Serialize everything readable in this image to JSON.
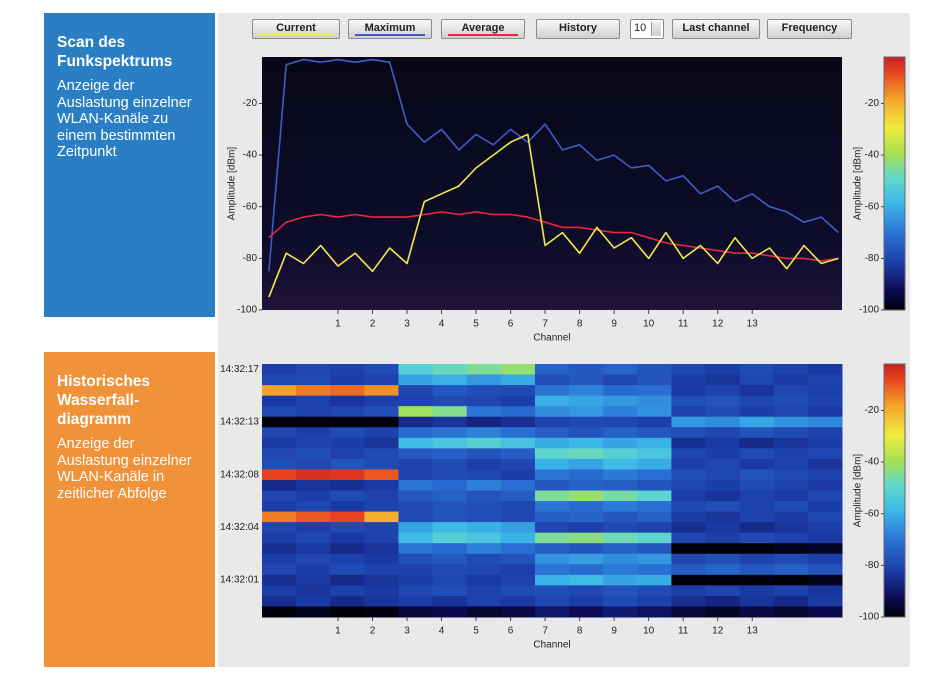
{
  "panels": [
    {
      "title": "Scan des Funkspektrums",
      "body": "Anzeige der Auslastung einzelner WLAN-Kanäle zu einem bestimmten Zeitpunkt"
    },
    {
      "title": "Historisches Wasserfall-diagramm",
      "body": "Anzeige der Auslastung einzelner WLAN-Kanäle in zeitlicher Abfolge"
    }
  ],
  "toolbar": {
    "buttons": [
      "History"
    ],
    "interval": 10,
    "buttons_right": [
      "Last channel",
      "Frequency"
    ]
  },
  "chart_data": [
    {
      "type": "line",
      "x_label": "Channel",
      "y_label": "Amplitude [dBm]",
      "x": [
        -1,
        -0.5,
        0,
        0.5,
        1,
        1.5,
        2,
        2.5,
        3,
        3.5,
        4,
        4.5,
        5,
        5.5,
        6,
        6.5,
        7,
        7.5,
        8,
        8.5,
        9,
        9.5,
        10,
        10.5,
        11,
        11.5,
        12,
        12.5,
        13,
        13.5,
        14,
        14.5,
        15,
        15.5
      ],
      "xlim": [
        -1.2,
        15.6
      ],
      "xticks": [
        1,
        2,
        3,
        4,
        5,
        6,
        7,
        8,
        9,
        10,
        11,
        12,
        13
      ],
      "ylim": [
        -100,
        -2
      ],
      "yticks": [
        -20,
        -40,
        -60,
        -80,
        -100
      ],
      "series": [
        {
          "name": "Current",
          "color": "#f2ea4a",
          "values": [
            -95,
            -78,
            -82,
            -75,
            -83,
            -78,
            -85,
            -76,
            -82,
            -58,
            -55,
            -52,
            -45,
            -40,
            -35,
            -32,
            -75,
            -70,
            -78,
            -68,
            -76,
            -72,
            -80,
            -70,
            -80,
            -75,
            -82,
            -72,
            -80,
            -76,
            -84,
            -75,
            -82,
            -80
          ]
        },
        {
          "name": "Maximum",
          "color": "#3e5cc8",
          "values": [
            -85,
            -5,
            -3,
            -4,
            -3,
            -4,
            -3,
            -4,
            -28,
            -35,
            -30,
            -38,
            -32,
            -36,
            -30,
            -35,
            -28,
            -38,
            -36,
            -42,
            -40,
            -45,
            -44,
            -50,
            -48,
            -55,
            -52,
            -58,
            -55,
            -60,
            -62,
            -66,
            -64,
            -70
          ]
        },
        {
          "name": "Average",
          "color": "#e8283c",
          "values": [
            -72,
            -66,
            -64,
            -63,
            -64,
            -63,
            -64,
            -64,
            -64,
            -63,
            -62,
            -63,
            -62,
            -63,
            -63,
            -64,
            -66,
            -68,
            -68,
            -69,
            -70,
            -70,
            -72,
            -74,
            -75,
            -76,
            -77,
            -78,
            -78,
            -79,
            -80,
            -80,
            -81,
            -80
          ]
        }
      ],
      "colorbar": {
        "label": "Amplitude [dBm]",
        "lim": [
          -100,
          -2
        ],
        "ticks": [
          -20,
          -40,
          -60,
          -80,
          -100
        ]
      }
    },
    {
      "type": "heatmap",
      "x_label": "Channel",
      "xlim": [
        -1.2,
        15.6
      ],
      "xticks": [
        1,
        2,
        3,
        4,
        5,
        6,
        7,
        8,
        9,
        10,
        11,
        12,
        13
      ],
      "row_labels": [
        "14:32:17",
        null,
        null,
        null,
        null,
        "14:32:13",
        null,
        null,
        null,
        null,
        "14:32:08",
        null,
        null,
        null,
        null,
        "14:32:04",
        null,
        null,
        null,
        null,
        "14:32:01",
        null,
        null,
        null
      ],
      "values": [
        [
          -82,
          -80,
          -81,
          -79,
          -52,
          -48,
          -45,
          -42,
          -74,
          -76,
          -73,
          -77,
          -80,
          -82,
          -79,
          -81,
          -83
        ],
        [
          -80,
          -79,
          -82,
          -81,
          -62,
          -60,
          -64,
          -61,
          -78,
          -76,
          -80,
          -77,
          -82,
          -84,
          -80,
          -83,
          -81
        ],
        [
          -18,
          -14,
          -12,
          -16,
          -80,
          -76,
          -78,
          -79,
          -70,
          -68,
          -72,
          -71,
          -83,
          -81,
          -84,
          -80,
          -82
        ],
        [
          -83,
          -81,
          -84,
          -82,
          -81,
          -79,
          -80,
          -82,
          -60,
          -62,
          -64,
          -66,
          -78,
          -77,
          -80,
          -79,
          -81
        ],
        [
          -79,
          -81,
          -80,
          -78,
          -40,
          -44,
          -70,
          -72,
          -66,
          -64,
          -68,
          -65,
          -81,
          -79,
          -82,
          -80,
          -83
        ],
        [
          -100,
          -100,
          -100,
          -100,
          -86,
          -84,
          -87,
          -85,
          -81,
          -79,
          -80,
          -82,
          -64,
          -66,
          -62,
          -65,
          -67
        ],
        [
          -80,
          -82,
          -79,
          -81,
          -72,
          -70,
          -68,
          -71,
          -75,
          -77,
          -74,
          -76,
          -78,
          -80,
          -77,
          -79,
          -81
        ],
        [
          -83,
          -81,
          -82,
          -84,
          -58,
          -55,
          -52,
          -56,
          -61,
          -59,
          -62,
          -60,
          -85,
          -83,
          -86,
          -84,
          -82
        ],
        [
          -80,
          -78,
          -81,
          -79,
          -76,
          -74,
          -77,
          -75,
          -50,
          -48,
          -52,
          -55,
          -80,
          -82,
          -79,
          -81,
          -80
        ],
        [
          -78,
          -80,
          -77,
          -79,
          -81,
          -79,
          -82,
          -80,
          -60,
          -62,
          -58,
          -61,
          -82,
          -80,
          -83,
          -81,
          -84
        ],
        [
          -8,
          -5,
          -6,
          -10,
          -81,
          -79,
          -80,
          -82,
          -70,
          -72,
          -69,
          -71,
          -78,
          -80,
          -77,
          -79,
          -81
        ],
        [
          -86,
          -84,
          -85,
          -83,
          -70,
          -72,
          -68,
          -71,
          -76,
          -74,
          -75,
          -77,
          -80,
          -82,
          -79,
          -81,
          -83
        ],
        [
          -80,
          -82,
          -79,
          -81,
          -76,
          -74,
          -77,
          -75,
          -45,
          -42,
          -46,
          -50,
          -82,
          -84,
          -81,
          -83,
          -80
        ],
        [
          -82,
          -80,
          -83,
          -81,
          -79,
          -77,
          -78,
          -80,
          -70,
          -72,
          -69,
          -71,
          -80,
          -78,
          -81,
          -79,
          -82
        ],
        [
          -14,
          -10,
          -8,
          -20,
          -79,
          -77,
          -78,
          -80,
          -75,
          -73,
          -76,
          -74,
          -82,
          -84,
          -81,
          -83,
          -80
        ],
        [
          -80,
          -82,
          -79,
          -81,
          -62,
          -58,
          -60,
          -63,
          -80,
          -82,
          -79,
          -81,
          -85,
          -83,
          -86,
          -84,
          -82
        ],
        [
          -82,
          -80,
          -83,
          -81,
          -58,
          -52,
          -55,
          -60,
          -45,
          -43,
          -47,
          -50,
          -80,
          -82,
          -79,
          -81,
          -83
        ],
        [
          -85,
          -83,
          -86,
          -84,
          -70,
          -72,
          -68,
          -71,
          -75,
          -77,
          -74,
          -76,
          -100,
          -100,
          -100,
          -98,
          -97
        ],
        [
          -82,
          -80,
          -81,
          -83,
          -78,
          -76,
          -79,
          -77,
          -65,
          -63,
          -66,
          -64,
          -80,
          -78,
          -81,
          -79,
          -82
        ],
        [
          -80,
          -82,
          -79,
          -81,
          -81,
          -79,
          -80,
          -82,
          -70,
          -72,
          -69,
          -71,
          -75,
          -73,
          -76,
          -74,
          -77
        ],
        [
          -85,
          -83,
          -86,
          -84,
          -82,
          -80,
          -83,
          -81,
          -60,
          -58,
          -62,
          -61,
          -100,
          -100,
          -99,
          -100,
          -98
        ],
        [
          -82,
          -84,
          -81,
          -83,
          -80,
          -78,
          -81,
          -79,
          -78,
          -80,
          -77,
          -79,
          -82,
          -80,
          -83,
          -81,
          -84
        ],
        [
          -85,
          -83,
          -86,
          -84,
          -82,
          -84,
          -81,
          -83,
          -80,
          -82,
          -79,
          -81,
          -85,
          -87,
          -84,
          -86,
          -83
        ],
        [
          -100,
          -98,
          -100,
          -99,
          -95,
          -93,
          -96,
          -94,
          -90,
          -92,
          -89,
          -91,
          -95,
          -97,
          -94,
          -96,
          -93
        ]
      ],
      "colorbar": {
        "label": "Amplitude [dBm]",
        "lim": [
          -100,
          -2
        ],
        "ticks": [
          -20,
          -40,
          -60,
          -80,
          -100
        ]
      }
    }
  ]
}
